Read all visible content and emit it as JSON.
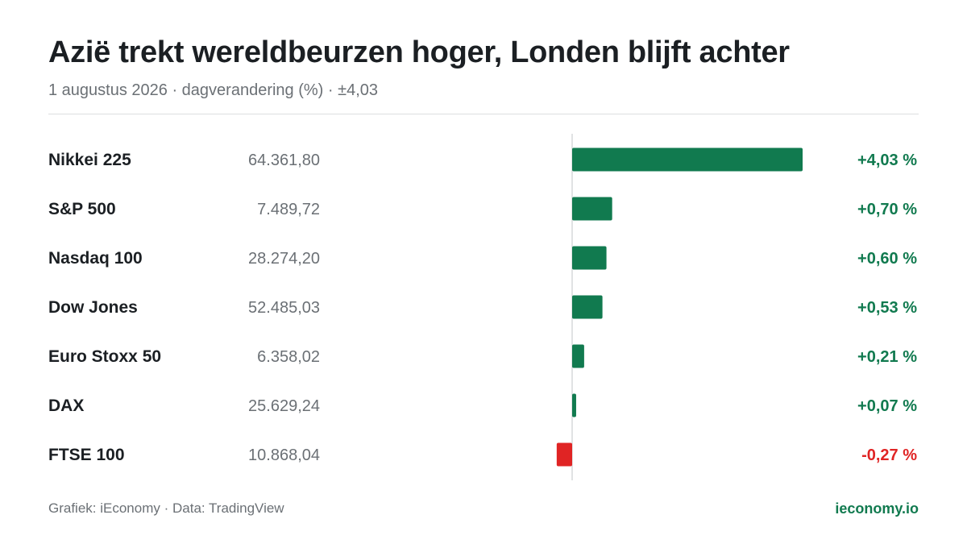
{
  "header": {
    "title": "Azië trekt wereldbeurzen hoger, Londen blijft achter",
    "subtitle": "1 augustus 2026 · dagverandering (%) · ±4,03"
  },
  "footer": {
    "credit": "Grafiek: iEconomy · Data: TradingView",
    "site": "ieconomy.io"
  },
  "colors": {
    "positive": "#117a4f",
    "negative": "#e02424"
  },
  "chart_data": {
    "type": "bar",
    "orientation": "horizontal",
    "categories": [
      "Nikkei 225",
      "S&P 500",
      "Nasdaq 100",
      "Dow Jones",
      "Euro Stoxx 50",
      "DAX",
      "FTSE 100"
    ],
    "index_levels": [
      "64.361,80",
      "7.489,72",
      "28.274,20",
      "52.485,03",
      "6.358,02",
      "25.629,24",
      "10.868,04"
    ],
    "values": [
      4.03,
      0.7,
      0.6,
      0.53,
      0.21,
      0.07,
      -0.27
    ],
    "value_labels": [
      "+4,03 %",
      "+0,70 %",
      "+0,60 %",
      "+0,53 %",
      "+0,21 %",
      "+0,07 %",
      "-0,27 %"
    ],
    "xlim": [
      -4.03,
      4.03
    ],
    "grid": false,
    "legend": "none"
  }
}
